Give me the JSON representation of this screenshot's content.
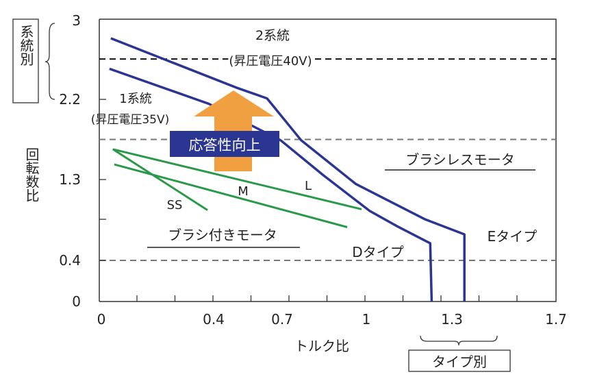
{
  "chart_data": {
    "type": "line",
    "xlabel": "トルク比",
    "ylabel": "回転数比",
    "x_ticks": [
      "0",
      "0.4",
      "0.7",
      "1",
      "1.3",
      "1.7"
    ],
    "y_ticks": [
      "0",
      "0.4",
      "1.3",
      "2.2",
      "3"
    ],
    "xlim": [
      0,
      1.7
    ],
    "ylim": [
      0,
      3
    ],
    "x_scale": "non-uniform",
    "y_scale": "non-uniform",
    "grid": false,
    "series": [
      {
        "name": "Eタイプ",
        "color": "#2b3592",
        "points": [
          [
            0.034,
            2.82
          ],
          [
            0.499,
            2.32
          ],
          [
            0.634,
            2.21
          ],
          [
            0.768,
            1.74
          ],
          [
            0.963,
            1.25
          ],
          [
            1.204,
            0.86
          ],
          [
            1.348,
            0.69
          ],
          [
            1.348,
            0
          ]
        ]
      },
      {
        "name": "Dタイプ",
        "color": "#2b3592",
        "points": [
          [
            0.029,
            2.51
          ],
          [
            0.383,
            2.15
          ],
          [
            0.694,
            1.74
          ],
          [
            0.846,
            1.35
          ],
          [
            1.012,
            0.95
          ],
          [
            1.108,
            0.78
          ],
          [
            1.224,
            0.59
          ],
          [
            1.229,
            0
          ]
        ]
      },
      {
        "name": "SS",
        "color": "#2a9a4a",
        "points": [
          [
            0.041,
            1.64
          ],
          [
            0.378,
            0.96
          ]
        ]
      },
      {
        "name": "M",
        "color": "#2a9a4a",
        "points": [
          [
            0.041,
            1.64
          ],
          [
            0.983,
            0.97
          ]
        ]
      },
      {
        "name": "L",
        "color": "#2a9a4a",
        "points": [
          [
            0.046,
            1.47
          ],
          [
            0.932,
            0.77
          ]
        ]
      }
    ],
    "reference_lines": [
      {
        "y": 2.61,
        "style": "dashed",
        "color": "#111111"
      },
      {
        "y": 1.75,
        "style": "dashed",
        "color": "#777777"
      },
      {
        "y": 0.4,
        "style": "dashed",
        "color": "#777777"
      }
    ],
    "annotations": {
      "two_system": "2系統",
      "two_system_voltage": "(昇圧電圧40V)",
      "one_system": "1系統",
      "one_system_voltage": "(昇圧電圧35V)",
      "response_up": "応答性向上",
      "brushless": "ブラシレスモータ",
      "brushed": "ブラシ付きモータ",
      "ss": "SS",
      "m": "M",
      "l": "L",
      "d_type": "Dタイプ",
      "e_type": "Eタイプ",
      "by_system": "系統別",
      "by_type": "タイプ別"
    },
    "colors": {
      "curve": "#2b3592",
      "motor_line": "#2a9a4a",
      "arrow": "#f0a040",
      "label_box": "#2b3592"
    }
  }
}
